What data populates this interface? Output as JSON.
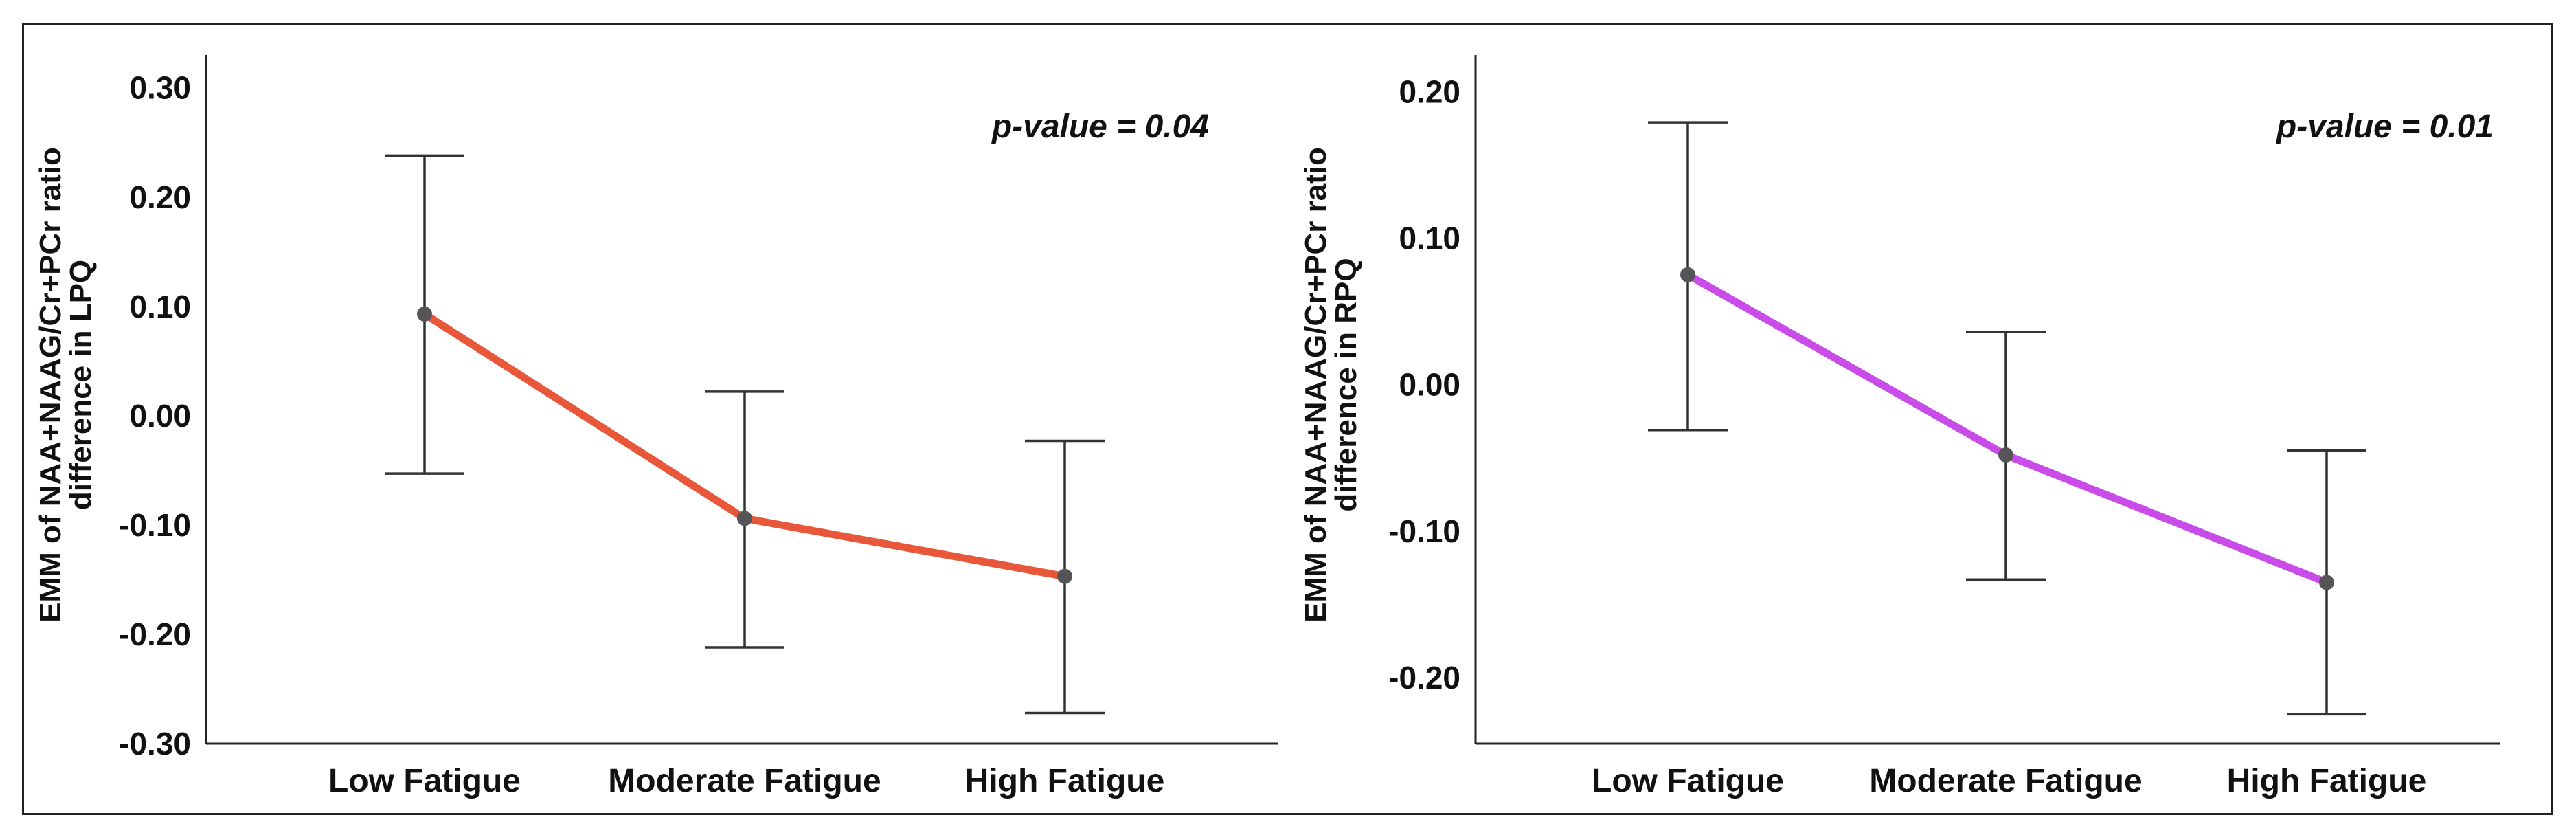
{
  "chart_data": [
    {
      "type": "line",
      "categories": [
        "Low Fatigue",
        "Moderate Fatigue",
        "High Fatigue"
      ],
      "values": [
        0.093,
        -0.094,
        -0.147
      ],
      "error_low": [
        -0.053,
        -0.212,
        -0.272
      ],
      "error_high": [
        0.238,
        0.022,
        -0.023
      ],
      "ylabel_line1": "EMM of NAA+NAAG/Cr+PCr ratio",
      "ylabel_line2": "difference in LPQ",
      "yticks": [
        "0.30",
        "0.20",
        "0.10",
        "0.00",
        "-0.10",
        "-0.20",
        "-0.30"
      ],
      "ytick_values": [
        0.3,
        0.2,
        0.1,
        0.0,
        -0.1,
        -0.2,
        -0.3
      ],
      "ylim": [
        -0.3,
        0.33
      ],
      "annotation": "p-value = 0.04",
      "line_color": "#E8573A"
    },
    {
      "type": "line",
      "categories": [
        "Low Fatigue",
        "Moderate Fatigue",
        "High Fatigue"
      ],
      "values": [
        0.075,
        -0.048,
        -0.135
      ],
      "error_low": [
        -0.031,
        -0.133,
        -0.225
      ],
      "error_high": [
        0.179,
        0.036,
        -0.045
      ],
      "ylabel_line1": "EMM of NAA+NAAG/Cr+PCr ratio",
      "ylabel_line2": "difference in RPQ",
      "yticks": [
        "0.20",
        "0.10",
        "0.00",
        "-0.10",
        "-0.20"
      ],
      "ytick_values": [
        0.2,
        0.1,
        0.0,
        -0.1,
        -0.2
      ],
      "ylim": [
        -0.245,
        0.225
      ],
      "annotation": "p-value = 0.01",
      "line_color": "#C94BE8"
    }
  ]
}
